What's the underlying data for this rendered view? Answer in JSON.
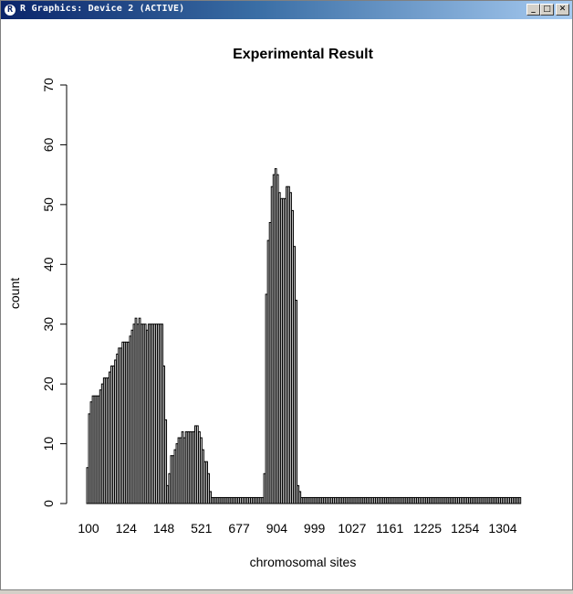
{
  "window": {
    "title": "R Graphics: Device 2 (ACTIVE)",
    "icon_letter": "R",
    "buttons": {
      "minimize": "_",
      "maximize": "□",
      "close": "✕"
    }
  },
  "chart_data": {
    "type": "bar",
    "title": "Experimental Result",
    "xlabel": "chromosomal sites",
    "ylabel": "count",
    "ylim": [
      0,
      70
    ],
    "y_ticks": [
      0,
      10,
      20,
      30,
      40,
      50,
      60,
      70
    ],
    "x_tick_labels": [
      "100",
      "124",
      "148",
      "521",
      "677",
      "904",
      "999",
      "1027",
      "1161",
      "1225",
      "1254",
      "1304"
    ],
    "bar_color": "#000000",
    "grid": false,
    "values": [
      6,
      15,
      17,
      18,
      18,
      18,
      18,
      19,
      20,
      21,
      21,
      21,
      22,
      23,
      23,
      24,
      25,
      26,
      26,
      27,
      27,
      27,
      27,
      28,
      29,
      30,
      31,
      30,
      31,
      30,
      30,
      30,
      29,
      30,
      30,
      30,
      30,
      30,
      30,
      30,
      30,
      23,
      14,
      3,
      5,
      8,
      8,
      9,
      10,
      11,
      11,
      12,
      11,
      12,
      12,
      12,
      12,
      12,
      13,
      13,
      12,
      11,
      9,
      7,
      7,
      5,
      2,
      1,
      1,
      1,
      1,
      1,
      1,
      1,
      1,
      1,
      1,
      1,
      1,
      1,
      1,
      1,
      1,
      1,
      1,
      1,
      1,
      1,
      1,
      1,
      1,
      1,
      1,
      1,
      1,
      5,
      35,
      44,
      47,
      53,
      55,
      56,
      55,
      52,
      51,
      51,
      51,
      53,
      53,
      52,
      49,
      43,
      34,
      3,
      2,
      1,
      1,
      1,
      1,
      1,
      1,
      1,
      1,
      1,
      1,
      1,
      1,
      1,
      1,
      1,
      1,
      1,
      1,
      1,
      1,
      1,
      1,
      1,
      1,
      1,
      1,
      1,
      1,
      1,
      1,
      1,
      1,
      1,
      1,
      1,
      1,
      1,
      1,
      1,
      1,
      1,
      1,
      1,
      1,
      1,
      1,
      1,
      1,
      1,
      1,
      1,
      1,
      1,
      1,
      1,
      1,
      1,
      1,
      1,
      1,
      1,
      1,
      1,
      1,
      1,
      1,
      1,
      1,
      1,
      1,
      1,
      1,
      1,
      1,
      1,
      1,
      1,
      1,
      1,
      1,
      1,
      1,
      1,
      1,
      1,
      1,
      1,
      1,
      1,
      1,
      1,
      1,
      1,
      1,
      1,
      1,
      1,
      1,
      1,
      1,
      1,
      1,
      1,
      1,
      1,
      1,
      1,
      1,
      1,
      1,
      1,
      1,
      1,
      1,
      1,
      1,
      1,
      1
    ]
  }
}
